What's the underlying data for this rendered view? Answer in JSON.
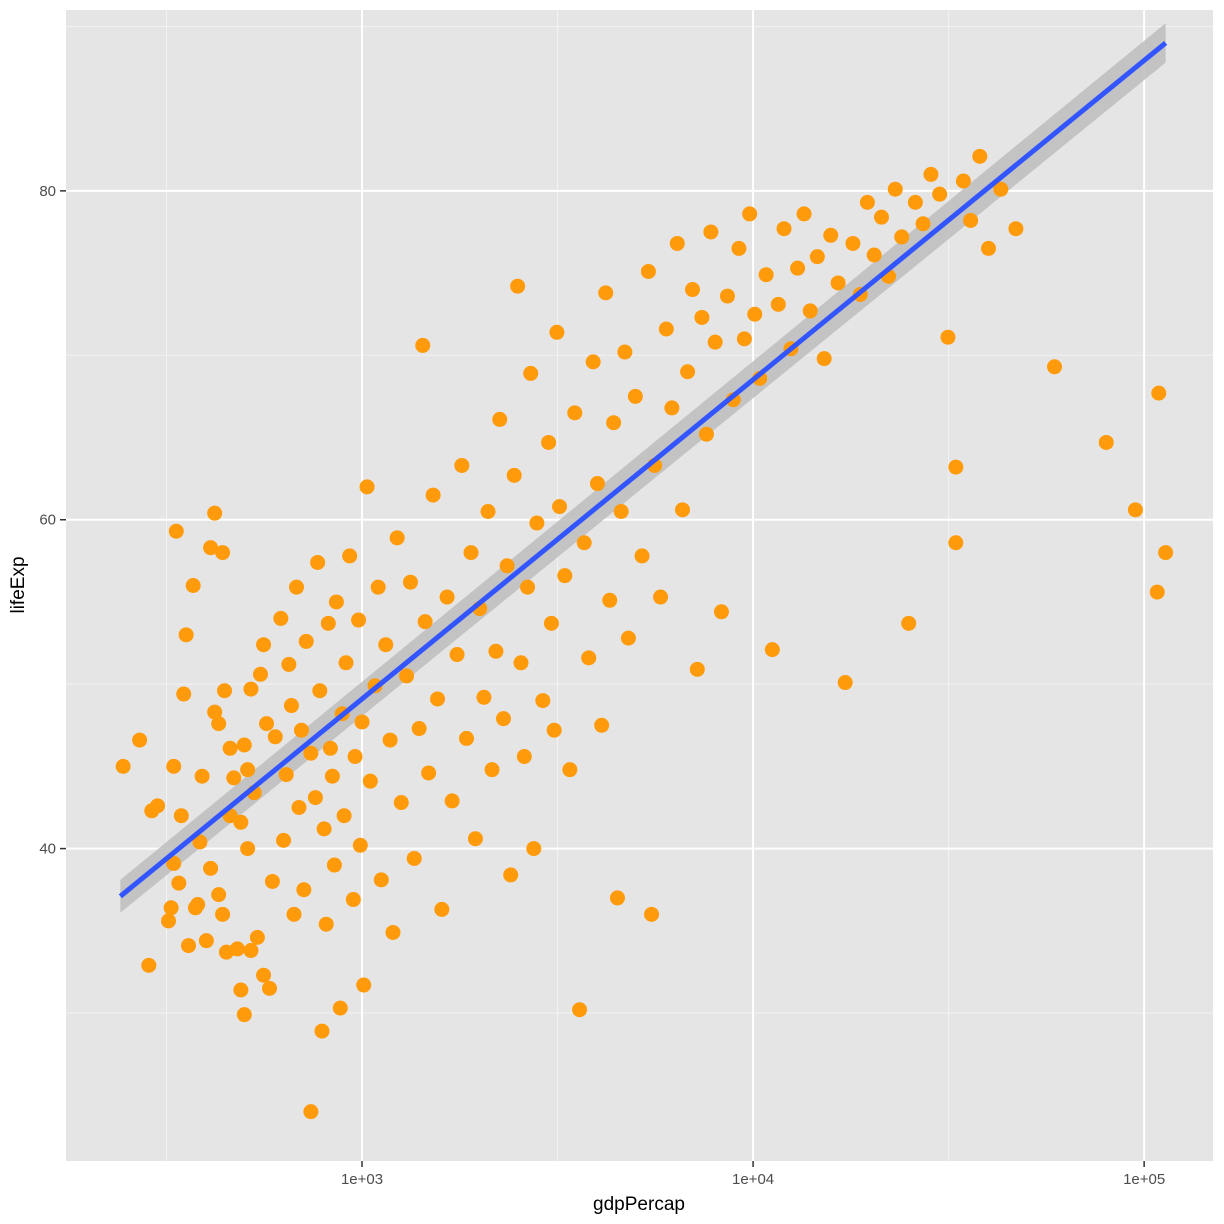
{
  "chart_data": {
    "type": "scatter",
    "title": "",
    "xlabel": "gdpPercap",
    "ylabel": "lifeExp",
    "x_scale": "log10",
    "xlim": [
      175,
      150000
    ],
    "ylim": [
      21,
      91
    ],
    "x_ticks": [
      {
        "value": 1000,
        "label": "1e+03"
      },
      {
        "value": 10000,
        "label": "1e+04"
      },
      {
        "value": 100000,
        "label": "1e+05"
      }
    ],
    "y_ticks": [
      {
        "value": 40,
        "label": "40"
      },
      {
        "value": 60,
        "label": "60"
      },
      {
        "value": 80,
        "label": "80"
      }
    ],
    "grid": true,
    "legend": "none",
    "colors": {
      "panel_background": "#e5e5e5",
      "grid_major": "#ffffff",
      "grid_minor": "#f2f2f2",
      "points": "#ff9a0a",
      "smooth_line": "#3355ff",
      "confidence_band": "#bdbdbd"
    },
    "smooth": {
      "method": "lm",
      "x": [
        241,
        113500
      ],
      "y": [
        37.1,
        89.0
      ],
      "se_halfwidth": [
        1.0,
        1.2
      ]
    },
    "points_estimated": [
      [
        245,
        45.0
      ],
      [
        270,
        46.6
      ],
      [
        290,
        42.3
      ],
      [
        285,
        32.9
      ],
      [
        300,
        42.6
      ],
      [
        320,
        35.6
      ],
      [
        325,
        36.4
      ],
      [
        330,
        39.1
      ],
      [
        330,
        45.0
      ],
      [
        335,
        59.3
      ],
      [
        340,
        37.9
      ],
      [
        345,
        42.0
      ],
      [
        350,
        49.4
      ],
      [
        355,
        53.0
      ],
      [
        360,
        34.1
      ],
      [
        370,
        56.0
      ],
      [
        375,
        36.4
      ],
      [
        380,
        36.6
      ],
      [
        385,
        40.4
      ],
      [
        390,
        44.4
      ],
      [
        400,
        34.4
      ],
      [
        410,
        38.8
      ],
      [
        410,
        58.3
      ],
      [
        420,
        48.3
      ],
      [
        420,
        60.4
      ],
      [
        430,
        47.6
      ],
      [
        430,
        37.2
      ],
      [
        440,
        36.0
      ],
      [
        440,
        58.0
      ],
      [
        445,
        49.6
      ],
      [
        450,
        33.7
      ],
      [
        460,
        42.0
      ],
      [
        460,
        46.1
      ],
      [
        470,
        44.3
      ],
      [
        480,
        33.9
      ],
      [
        490,
        31.4
      ],
      [
        490,
        41.6
      ],
      [
        500,
        29.9
      ],
      [
        500,
        46.3
      ],
      [
        510,
        40.0
      ],
      [
        510,
        44.8
      ],
      [
        520,
        33.8
      ],
      [
        520,
        49.7
      ],
      [
        530,
        43.4
      ],
      [
        540,
        34.6
      ],
      [
        550,
        50.6
      ],
      [
        560,
        32.3
      ],
      [
        560,
        52.4
      ],
      [
        570,
        47.6
      ],
      [
        580,
        31.5
      ],
      [
        590,
        38.0
      ],
      [
        600,
        46.8
      ],
      [
        620,
        54.0
      ],
      [
        630,
        40.5
      ],
      [
        640,
        44.5
      ],
      [
        650,
        51.2
      ],
      [
        660,
        48.7
      ],
      [
        670,
        36.0
      ],
      [
        680,
        55.9
      ],
      [
        690,
        42.5
      ],
      [
        700,
        47.2
      ],
      [
        710,
        37.5
      ],
      [
        720,
        52.6
      ],
      [
        740,
        24.0
      ],
      [
        740,
        45.8
      ],
      [
        760,
        43.1
      ],
      [
        770,
        57.4
      ],
      [
        780,
        49.6
      ],
      [
        790,
        28.9
      ],
      [
        800,
        41.2
      ],
      [
        810,
        35.4
      ],
      [
        820,
        53.7
      ],
      [
        830,
        46.1
      ],
      [
        840,
        44.4
      ],
      [
        850,
        39.0
      ],
      [
        860,
        55.0
      ],
      [
        880,
        30.3
      ],
      [
        890,
        48.2
      ],
      [
        900,
        42.0
      ],
      [
        910,
        51.3
      ],
      [
        930,
        57.8
      ],
      [
        950,
        36.9
      ],
      [
        960,
        45.6
      ],
      [
        980,
        53.9
      ],
      [
        990,
        40.2
      ],
      [
        1000,
        47.7
      ],
      [
        1010,
        31.7
      ],
      [
        1030,
        62.0
      ],
      [
        1050,
        44.1
      ],
      [
        1080,
        49.9
      ],
      [
        1100,
        55.9
      ],
      [
        1120,
        38.1
      ],
      [
        1150,
        52.4
      ],
      [
        1180,
        46.6
      ],
      [
        1200,
        34.9
      ],
      [
        1230,
        58.9
      ],
      [
        1260,
        42.8
      ],
      [
        1300,
        50.5
      ],
      [
        1330,
        56.2
      ],
      [
        1360,
        39.4
      ],
      [
        1400,
        47.3
      ],
      [
        1430,
        70.6
      ],
      [
        1450,
        53.8
      ],
      [
        1480,
        44.6
      ],
      [
        1520,
        61.5
      ],
      [
        1560,
        49.1
      ],
      [
        1600,
        36.3
      ],
      [
        1650,
        55.3
      ],
      [
        1700,
        42.9
      ],
      [
        1750,
        51.8
      ],
      [
        1800,
        63.3
      ],
      [
        1850,
        46.7
      ],
      [
        1900,
        58.0
      ],
      [
        1950,
        40.6
      ],
      [
        2000,
        54.6
      ],
      [
        2050,
        49.2
      ],
      [
        2100,
        60.5
      ],
      [
        2150,
        44.8
      ],
      [
        2200,
        52.0
      ],
      [
        2250,
        66.1
      ],
      [
        2300,
        47.9
      ],
      [
        2350,
        57.2
      ],
      [
        2400,
        38.4
      ],
      [
        2450,
        62.7
      ],
      [
        2500,
        74.2
      ],
      [
        2550,
        51.3
      ],
      [
        2600,
        45.6
      ],
      [
        2650,
        55.9
      ],
      [
        2700,
        68.9
      ],
      [
        2750,
        40.0
      ],
      [
        2800,
        59.8
      ],
      [
        2900,
        49.0
      ],
      [
        3000,
        64.7
      ],
      [
        3050,
        53.7
      ],
      [
        3100,
        47.2
      ],
      [
        3150,
        71.4
      ],
      [
        3200,
        60.8
      ],
      [
        3300,
        56.6
      ],
      [
        3400,
        44.8
      ],
      [
        3500,
        66.5
      ],
      [
        3600,
        30.2
      ],
      [
        3700,
        58.6
      ],
      [
        3800,
        51.6
      ],
      [
        3900,
        69.6
      ],
      [
        4000,
        62.2
      ],
      [
        4100,
        47.5
      ],
      [
        4200,
        73.8
      ],
      [
        4300,
        55.1
      ],
      [
        4400,
        65.9
      ],
      [
        4500,
        37.0
      ],
      [
        4600,
        60.5
      ],
      [
        4700,
        70.2
      ],
      [
        4800,
        52.8
      ],
      [
        5000,
        67.5
      ],
      [
        5200,
        57.8
      ],
      [
        5400,
        75.1
      ],
      [
        5500,
        36.0
      ],
      [
        5600,
        63.3
      ],
      [
        5800,
        55.3
      ],
      [
        6000,
        71.6
      ],
      [
        6200,
        66.8
      ],
      [
        6400,
        76.8
      ],
      [
        6600,
        60.6
      ],
      [
        6800,
        69.0
      ],
      [
        7000,
        74.0
      ],
      [
        7200,
        50.9
      ],
      [
        7400,
        72.3
      ],
      [
        7600,
        65.2
      ],
      [
        7800,
        77.5
      ],
      [
        8000,
        70.8
      ],
      [
        8300,
        54.4
      ],
      [
        8600,
        73.6
      ],
      [
        8900,
        67.3
      ],
      [
        9200,
        76.5
      ],
      [
        9500,
        71.0
      ],
      [
        9800,
        78.6
      ],
      [
        10100,
        72.5
      ],
      [
        10400,
        68.6
      ],
      [
        10800,
        74.9
      ],
      [
        11200,
        52.1
      ],
      [
        11600,
        73.1
      ],
      [
        12000,
        77.7
      ],
      [
        12500,
        70.4
      ],
      [
        13000,
        75.3
      ],
      [
        13500,
        78.6
      ],
      [
        14000,
        72.7
      ],
      [
        14600,
        76.0
      ],
      [
        15200,
        69.8
      ],
      [
        15800,
        77.3
      ],
      [
        16500,
        74.4
      ],
      [
        17200,
        50.1
      ],
      [
        18000,
        76.8
      ],
      [
        18800,
        73.7
      ],
      [
        19600,
        79.3
      ],
      [
        20400,
        76.1
      ],
      [
        21300,
        78.4
      ],
      [
        22200,
        74.8
      ],
      [
        23100,
        80.1
      ],
      [
        24000,
        77.2
      ],
      [
        25000,
        53.7
      ],
      [
        26000,
        79.3
      ],
      [
        27200,
        78.0
      ],
      [
        28500,
        81.0
      ],
      [
        30000,
        79.8
      ],
      [
        31500,
        71.1
      ],
      [
        33000,
        63.2
      ],
      [
        33000,
        58.6
      ],
      [
        34500,
        80.6
      ],
      [
        36000,
        78.2
      ],
      [
        38000,
        82.1
      ],
      [
        40000,
        76.5
      ],
      [
        43000,
        80.1
      ],
      [
        47000,
        77.7
      ],
      [
        59000,
        69.3
      ],
      [
        80000,
        64.7
      ],
      [
        95000,
        60.6
      ],
      [
        108000,
        55.6
      ],
      [
        109000,
        67.7
      ],
      [
        113500,
        58.0
      ]
    ]
  }
}
